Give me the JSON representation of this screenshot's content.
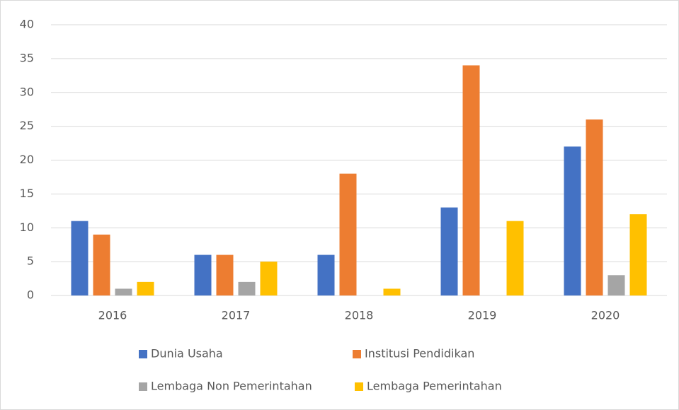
{
  "chart_data": {
    "type": "bar",
    "categories": [
      "2016",
      "2017",
      "2018",
      "2019",
      "2020"
    ],
    "series": [
      {
        "name": "Dunia Usaha",
        "color": "#4472c4",
        "values": [
          11,
          6,
          6,
          13,
          22
        ]
      },
      {
        "name": "Institusi Pendidikan",
        "color": "#ed7d31",
        "values": [
          9,
          6,
          18,
          34,
          26
        ]
      },
      {
        "name": "Lembaga Non Pemerintahan",
        "color": "#a5a5a5",
        "values": [
          1,
          2,
          0,
          0,
          3
        ]
      },
      {
        "name": "Lembaga Pemerintahan",
        "color": "#ffc000",
        "values": [
          2,
          5,
          1,
          11,
          12
        ]
      }
    ],
    "ylim": [
      0,
      40
    ],
    "yticks": [
      0,
      5,
      10,
      15,
      20,
      25,
      30,
      35,
      40
    ],
    "grid": true
  }
}
